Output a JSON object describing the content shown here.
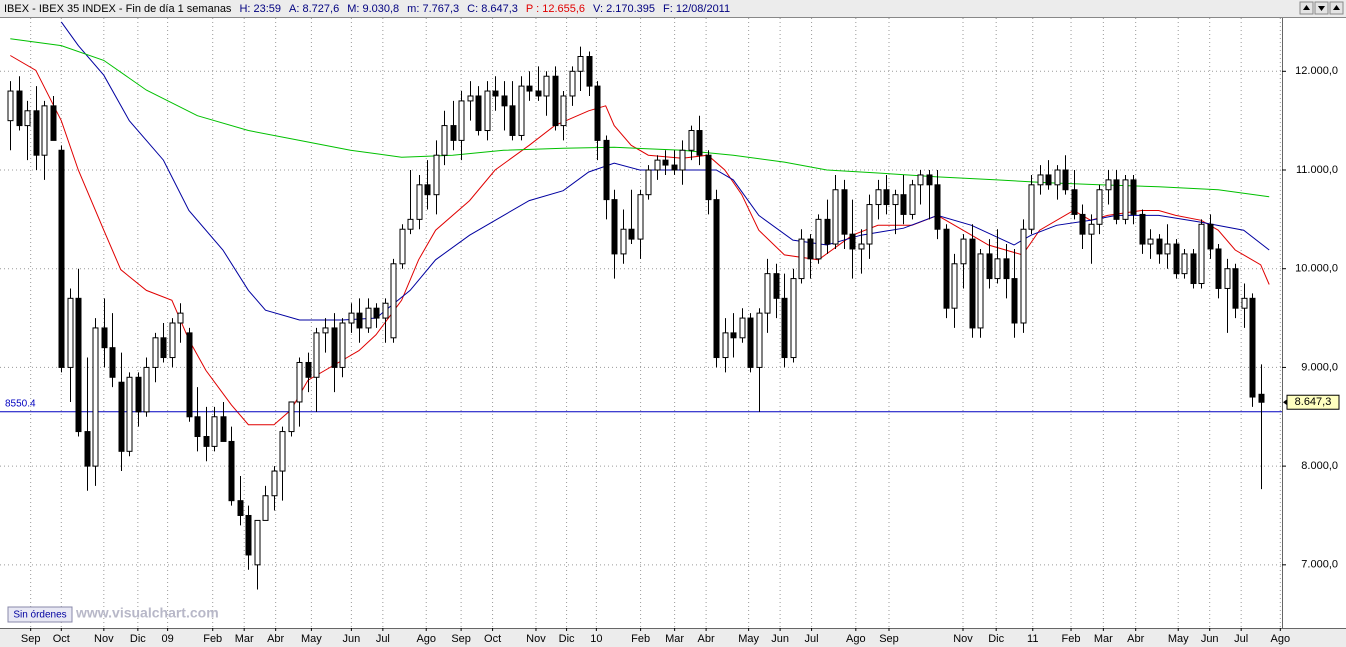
{
  "header": {
    "symbol": "IBEX - IBEX 35 INDEX - Fin de día 1 semanas",
    "fields": [
      {
        "text": "H: 23:59",
        "color": "#000080"
      },
      {
        "text": "A: 8.727,6",
        "color": "#000080"
      },
      {
        "text": "M: 9.030,8",
        "color": "#000080"
      },
      {
        "text": "m: 7.767,3",
        "color": "#000080"
      },
      {
        "text": "C: 8.647,3",
        "color": "#000080"
      },
      {
        "text": "P : 12.655,6",
        "color": "#e00000"
      },
      {
        "text": "V: 2.170.395",
        "color": "#000080"
      },
      {
        "text": "F: 12/08/2011",
        "color": "#000080"
      }
    ]
  },
  "footer": {
    "status": "Sin órdenes",
    "watermark": "www.visualchart.com"
  },
  "chart_data": {
    "type": "candlestick",
    "grid": true,
    "xlim": [
      -0.5,
      149.5
    ],
    "ylim": [
      6360,
      12540
    ],
    "yticks": [
      {
        "value": 7000,
        "label": "7.000,0"
      },
      {
        "value": 8000,
        "label": "8.000,0"
      },
      {
        "value": 9000,
        "label": "9.000,0"
      },
      {
        "value": 10000,
        "label": "10.000,0"
      },
      {
        "value": 11000,
        "label": "11.000,0"
      },
      {
        "value": 12000,
        "label": "12.000,0"
      }
    ],
    "xticks": [
      {
        "value": 2.4,
        "label": "Sep"
      },
      {
        "value": 6,
        "label": "Oct"
      },
      {
        "value": 11,
        "label": "Nov"
      },
      {
        "value": 15,
        "label": "Dic"
      },
      {
        "value": 18.5,
        "label": "09"
      },
      {
        "value": 23.8,
        "label": "Feb"
      },
      {
        "value": 27.5,
        "label": "Mar"
      },
      {
        "value": 31.2,
        "label": "Abr"
      },
      {
        "value": 35.4,
        "label": "May"
      },
      {
        "value": 40.1,
        "label": "Jun"
      },
      {
        "value": 43.8,
        "label": "Jul"
      },
      {
        "value": 48.9,
        "label": "Ago"
      },
      {
        "value": 53,
        "label": "Sep"
      },
      {
        "value": 56.7,
        "label": "Oct"
      },
      {
        "value": 61.8,
        "label": "Nov"
      },
      {
        "value": 65.4,
        "label": "Dic"
      },
      {
        "value": 68.9,
        "label": "10"
      },
      {
        "value": 74.1,
        "label": "Feb"
      },
      {
        "value": 78.1,
        "label": "Mar"
      },
      {
        "value": 81.8,
        "label": "Abr"
      },
      {
        "value": 86.8,
        "label": "May"
      },
      {
        "value": 90.5,
        "label": "Jun"
      },
      {
        "value": 94.2,
        "label": "Jul"
      },
      {
        "value": 99.4,
        "label": "Ago"
      },
      {
        "value": 103.3,
        "label": "Sep"
      },
      {
        "value": 112,
        "label": "Nov"
      },
      {
        "value": 115.9,
        "label": "Dic"
      },
      {
        "value": 120.2,
        "label": "11"
      },
      {
        "value": 124.7,
        "label": "Feb"
      },
      {
        "value": 128.5,
        "label": "Mar"
      },
      {
        "value": 132.3,
        "label": "Abr"
      },
      {
        "value": 137.3,
        "label": "May"
      },
      {
        "value": 141,
        "label": "Jun"
      },
      {
        "value": 144.7,
        "label": "Jul"
      },
      {
        "value": 149.3,
        "label": "Ago"
      }
    ],
    "hline": {
      "value": 8550.4,
      "label": "8550.4",
      "color": "#0000c0"
    },
    "last_price": {
      "value": 8647.3,
      "label": "8.647,3"
    },
    "candles": [
      [
        11500,
        11900,
        11200,
        11800
      ],
      [
        11800,
        11950,
        11400,
        11450
      ],
      [
        11450,
        11700,
        11100,
        11600
      ],
      [
        11600,
        11850,
        11000,
        11150
      ],
      [
        11150,
        11700,
        10900,
        11650
      ],
      [
        11650,
        11750,
        11300,
        11300
      ],
      [
        11200,
        11250,
        8950,
        9000
      ],
      [
        9000,
        9800,
        8650,
        9700
      ],
      [
        9700,
        10000,
        8300,
        8350
      ],
      [
        8350,
        9100,
        7750,
        8000
      ],
      [
        8000,
        9500,
        7800,
        9400
      ],
      [
        9400,
        9700,
        9000,
        9200
      ],
      [
        9200,
        9550,
        8800,
        8900
      ],
      [
        8850,
        9150,
        7950,
        8150
      ],
      [
        8150,
        8950,
        8100,
        8900
      ],
      [
        8900,
        8950,
        8400,
        8550
      ],
      [
        8550,
        9100,
        8500,
        9000
      ],
      [
        9000,
        9350,
        8850,
        9300
      ],
      [
        9300,
        9450,
        9050,
        9100
      ],
      [
        9100,
        9500,
        9000,
        9450
      ],
      [
        9450,
        9650,
        9250,
        9550
      ],
      [
        9350,
        9400,
        8450,
        8500
      ],
      [
        8500,
        8800,
        8150,
        8300
      ],
      [
        8300,
        8600,
        8050,
        8200
      ],
      [
        8200,
        8600,
        8150,
        8500
      ],
      [
        8500,
        8650,
        8250,
        8250
      ],
      [
        8250,
        8400,
        7600,
        7650
      ],
      [
        7650,
        7900,
        7400,
        7500
      ],
      [
        7500,
        7600,
        6950,
        7100
      ],
      [
        7000,
        7450,
        6750,
        7450
      ],
      [
        7450,
        7800,
        7450,
        7700
      ],
      [
        7700,
        8000,
        7550,
        7950
      ],
      [
        7950,
        8400,
        7650,
        8350
      ],
      [
        8350,
        8650,
        8300,
        8650
      ],
      [
        8650,
        9100,
        8400,
        9050
      ],
      [
        9050,
        9150,
        8750,
        8900
      ],
      [
        8900,
        9400,
        8550,
        9350
      ],
      [
        9350,
        9500,
        9150,
        9400
      ],
      [
        9400,
        9550,
        8750,
        9000
      ],
      [
        9000,
        9500,
        8900,
        9450
      ],
      [
        9450,
        9650,
        9350,
        9550
      ],
      [
        9550,
        9700,
        9250,
        9400
      ],
      [
        9400,
        9700,
        9350,
        9600
      ],
      [
        9600,
        9650,
        9400,
        9500
      ],
      [
        9500,
        9700,
        9250,
        9650
      ],
      [
        9300,
        10100,
        9250,
        10050
      ],
      [
        10050,
        10450,
        10000,
        10400
      ],
      [
        10400,
        11000,
        10350,
        10500
      ],
      [
        10500,
        10950,
        10400,
        10850
      ],
      [
        10850,
        11100,
        10600,
        10750
      ],
      [
        10750,
        11300,
        10550,
        11150
      ],
      [
        11150,
        11600,
        11050,
        11450
      ],
      [
        11450,
        11700,
        11200,
        11300
      ],
      [
        11300,
        11800,
        11100,
        11700
      ],
      [
        11700,
        11900,
        11500,
        11750
      ],
      [
        11750,
        11850,
        11350,
        11400
      ],
      [
        11400,
        11900,
        11300,
        11800
      ],
      [
        11800,
        11950,
        11600,
        11750
      ],
      [
        11750,
        11900,
        11400,
        11650
      ],
      [
        11650,
        11900,
        11300,
        11350
      ],
      [
        11350,
        11950,
        11300,
        11850
      ],
      [
        11850,
        12000,
        11700,
        11800
      ],
      [
        11800,
        12050,
        11700,
        11750
      ],
      [
        11750,
        12000,
        11550,
        11950
      ],
      [
        11950,
        12050,
        11400,
        11450
      ],
      [
        11450,
        11800,
        11300,
        11750
      ],
      [
        11750,
        12050,
        11650,
        12000
      ],
      [
        12000,
        12250,
        11800,
        12150
      ],
      [
        12150,
        12200,
        11750,
        11850
      ],
      [
        11850,
        11900,
        11100,
        11300
      ],
      [
        11300,
        11350,
        10500,
        10700
      ],
      [
        10700,
        10800,
        9900,
        10150
      ],
      [
        10150,
        10600,
        10050,
        10400
      ],
      [
        10400,
        10800,
        10250,
        10300
      ],
      [
        10300,
        10800,
        10100,
        10750
      ],
      [
        10750,
        11050,
        10700,
        11000
      ],
      [
        11000,
        11150,
        10900,
        11100
      ],
      [
        11100,
        11200,
        10950,
        11050
      ],
      [
        11050,
        11200,
        10950,
        11000
      ],
      [
        11000,
        11300,
        10850,
        11200
      ],
      [
        11200,
        11450,
        11100,
        11400
      ],
      [
        11400,
        11550,
        11050,
        11150
      ],
      [
        11150,
        11200,
        10550,
        10700
      ],
      [
        10700,
        10800,
        9000,
        9100
      ],
      [
        9100,
        9500,
        8950,
        9350
      ],
      [
        9350,
        9550,
        9100,
        9300
      ],
      [
        9300,
        9600,
        9250,
        9500
      ],
      [
        9500,
        9550,
        8950,
        9000
      ],
      [
        9000,
        9600,
        8550,
        9550
      ],
      [
        9550,
        10100,
        9350,
        9950
      ],
      [
        9950,
        10050,
        9500,
        9700
      ],
      [
        9700,
        9950,
        9000,
        9100
      ],
      [
        9100,
        10000,
        9050,
        9900
      ],
      [
        9900,
        10400,
        9850,
        10300
      ],
      [
        10300,
        10350,
        9900,
        10100
      ],
      [
        10100,
        10550,
        10050,
        10500
      ],
      [
        10500,
        10700,
        10150,
        10250
      ],
      [
        10250,
        10950,
        10200,
        10800
      ],
      [
        10800,
        10900,
        10200,
        10350
      ],
      [
        10350,
        10700,
        9900,
        10200
      ],
      [
        10200,
        10400,
        9950,
        10250
      ],
      [
        10250,
        10750,
        10100,
        10650
      ],
      [
        10650,
        10900,
        10500,
        10800
      ],
      [
        10800,
        10950,
        10550,
        10650
      ],
      [
        10650,
        10800,
        10350,
        10750
      ],
      [
        10750,
        10950,
        10450,
        10550
      ],
      [
        10550,
        10900,
        10500,
        10850
      ],
      [
        10850,
        11000,
        10650,
        10950
      ],
      [
        10950,
        11000,
        10500,
        10850
      ],
      [
        10850,
        11000,
        10300,
        10400
      ],
      [
        10400,
        10450,
        9500,
        9600
      ],
      [
        9600,
        10150,
        9400,
        10050
      ],
      [
        10050,
        10350,
        9800,
        10300
      ],
      [
        10300,
        10450,
        9300,
        9400
      ],
      [
        9400,
        10200,
        9300,
        10150
      ],
      [
        10150,
        10300,
        9800,
        9900
      ],
      [
        9900,
        10400,
        9850,
        10100
      ],
      [
        10100,
        10250,
        9700,
        9900
      ],
      [
        9900,
        10200,
        9300,
        9450
      ],
      [
        9450,
        10500,
        9350,
        10400
      ],
      [
        10400,
        10950,
        10350,
        10850
      ],
      [
        10850,
        11050,
        10750,
        10950
      ],
      [
        10950,
        11100,
        10800,
        10850
      ],
      [
        10850,
        11050,
        10700,
        11000
      ],
      [
        11000,
        11150,
        10750,
        10800
      ],
      [
        10800,
        11000,
        10500,
        10550
      ],
      [
        10550,
        10650,
        10200,
        10350
      ],
      [
        10350,
        10550,
        10050,
        10450
      ],
      [
        10450,
        10850,
        10350,
        10800
      ],
      [
        10800,
        11000,
        10650,
        10900
      ],
      [
        10900,
        11000,
        10450,
        10500
      ],
      [
        10500,
        10950,
        10450,
        10900
      ],
      [
        10900,
        10950,
        10450,
        10550
      ],
      [
        10550,
        10600,
        10150,
        10250
      ],
      [
        10250,
        10400,
        10100,
        10300
      ],
      [
        10300,
        10350,
        10050,
        10150
      ],
      [
        10150,
        10450,
        10000,
        10250
      ],
      [
        10250,
        10300,
        9900,
        9950
      ],
      [
        9950,
        10200,
        9900,
        10150
      ],
      [
        10150,
        10200,
        9800,
        9850
      ],
      [
        9850,
        10500,
        9800,
        10450
      ],
      [
        10450,
        10550,
        10100,
        10200
      ],
      [
        10200,
        10250,
        9700,
        9800
      ],
      [
        9800,
        10100,
        9350,
        10000
      ],
      [
        10000,
        10050,
        9500,
        9600
      ],
      [
        9600,
        9850,
        9400,
        9700
      ],
      [
        9700,
        9750,
        8600,
        8700
      ],
      [
        8727.6,
        9030.8,
        7767.3,
        8647.3
      ]
    ],
    "overlays": [
      {
        "color": "#e00000",
        "x": [
          0,
          3,
          6,
          8,
          11,
          13,
          16,
          19,
          21,
          23,
          26,
          28,
          31,
          33,
          35,
          39,
          41,
          43,
          46,
          48,
          50,
          54,
          57,
          61,
          64,
          68,
          70,
          71,
          73,
          75,
          79,
          82,
          84,
          86,
          88,
          91,
          95,
          99,
          102,
          106,
          109,
          112,
          115,
          119,
          121,
          125,
          127,
          129,
          133,
          135,
          137,
          140,
          142,
          144,
          147,
          148
        ],
        "values": [
          12160,
          12010,
          11500,
          11000,
          10390,
          9990,
          9780,
          9680,
          9280,
          8970,
          8620,
          8420,
          8420,
          8570,
          8870,
          9070,
          9170,
          9330,
          9680,
          10090,
          10390,
          10690,
          11000,
          11250,
          11450,
          11600,
          11650,
          11450,
          11250,
          11150,
          11120,
          11150,
          11000,
          10750,
          10390,
          10140,
          10090,
          10340,
          10440,
          10440,
          10540,
          10390,
          10240,
          10140,
          10390,
          10590,
          10490,
          10540,
          10590,
          10590,
          10540,
          10490,
          10390,
          10190,
          10040,
          9840
        ]
      },
      {
        "color": "#0000a0",
        "x": [
          6,
          8,
          11,
          14,
          18,
          21,
          25,
          28,
          30,
          34,
          39,
          43,
          47,
          50,
          54,
          58,
          61,
          65,
          68,
          71,
          74,
          79,
          83,
          85,
          88,
          92,
          96,
          100,
          105,
          109,
          113,
          118,
          120,
          123,
          127,
          130,
          135,
          140,
          145,
          148
        ],
        "values": [
          12500,
          12260,
          11960,
          11500,
          11100,
          10590,
          10190,
          9780,
          9580,
          9480,
          9480,
          9500,
          9780,
          10090,
          10340,
          10540,
          10690,
          10790,
          10980,
          11070,
          11000,
          11000,
          11000,
          10900,
          10540,
          10290,
          10240,
          10340,
          10410,
          10540,
          10440,
          10240,
          10340,
          10440,
          10490,
          10540,
          10540,
          10470,
          10390,
          10190
        ]
      },
      {
        "color": "#00c000",
        "x": [
          0,
          6,
          11,
          16,
          22,
          28,
          34,
          40,
          46,
          52,
          58,
          65,
          71,
          79,
          85,
          91,
          96,
          102,
          109,
          116,
          122,
          128,
          135,
          142,
          148
        ],
        "values": [
          12330,
          12260,
          12110,
          11810,
          11550,
          11400,
          11300,
          11200,
          11130,
          11150,
          11200,
          11220,
          11230,
          11200,
          11150,
          11080,
          11000,
          10970,
          10930,
          10900,
          10870,
          10850,
          10830,
          10800,
          10730
        ]
      }
    ]
  }
}
